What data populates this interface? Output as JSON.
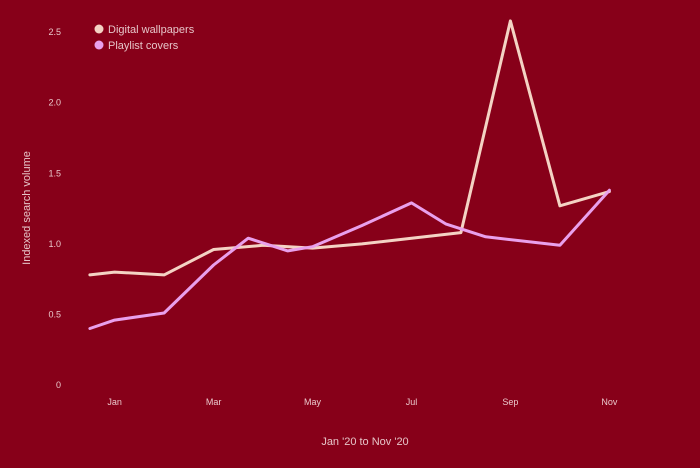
{
  "chart_data": {
    "type": "line",
    "title": "",
    "xlabel": "Jan '20 to Nov '20",
    "ylabel": "Indexed search volume",
    "x_tick_labels": [
      {
        "label": "Jan",
        "x": 0.5
      },
      {
        "label": "Mar",
        "x": 2.5
      },
      {
        "label": "May",
        "x": 4.5
      },
      {
        "label": "Jul",
        "x": 6.5
      },
      {
        "label": "Sep",
        "x": 8.5
      },
      {
        "label": "Nov",
        "x": 10.5
      }
    ],
    "y_ticks": [
      0,
      0.5,
      1.0,
      1.5,
      2.0,
      2.5
    ],
    "y_tick_labels": [
      "0",
      "0.5",
      "1.0",
      "1.5",
      "2.0",
      "2.5"
    ],
    "xlim": [
      -0.2,
      11.2
    ],
    "ylim": [
      0,
      2.65
    ],
    "grid": false,
    "legend_position": "top-left",
    "series": [
      {
        "name": "Digital wallpapers",
        "color": "#f4d3c4",
        "x": [
          0,
          0.5,
          1.5,
          2.5,
          3.5,
          4.5,
          5.5,
          6.5,
          7.5,
          8.5,
          9.5,
          10.5
        ],
        "values": [
          0.78,
          0.8,
          0.78,
          0.96,
          0.99,
          0.97,
          1.0,
          1.04,
          1.08,
          2.58,
          1.27,
          1.37
        ]
      },
      {
        "name": "Playlist covers",
        "color": "#e9a0ec",
        "x": [
          0,
          0.5,
          1.5,
          2.5,
          3.2,
          4.0,
          4.5,
          5.5,
          6.5,
          7.2,
          8.0,
          9.5,
          10.5
        ],
        "values": [
          0.4,
          0.46,
          0.51,
          0.85,
          1.04,
          0.95,
          0.98,
          1.13,
          1.29,
          1.14,
          1.05,
          0.99,
          1.38
        ]
      }
    ]
  },
  "colors": {
    "background": "#870019",
    "text": "#e6c4c8",
    "axis_text": "#eac8cc"
  },
  "icons": {
    "legend_marker": "filled-circle"
  }
}
